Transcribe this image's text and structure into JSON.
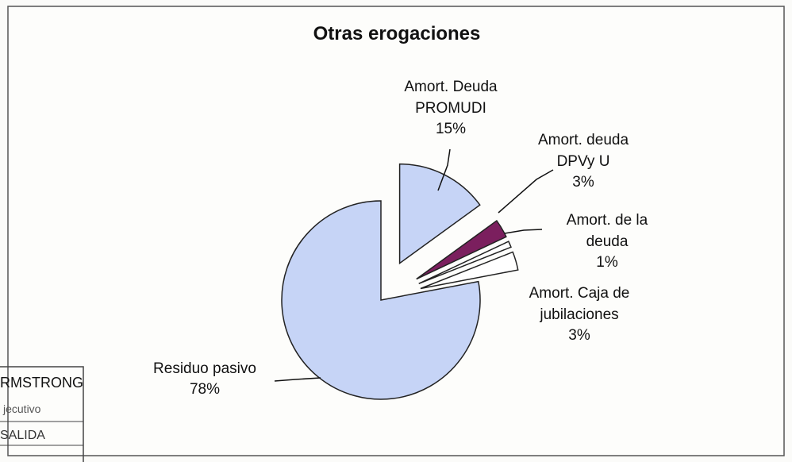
{
  "chart_data": {
    "type": "pie",
    "title": "Otras erogaciones",
    "categories": [
      "Amort. Deuda PROMUDI",
      "Amort. deuda DPVy U",
      "Amort. de la deuda",
      "Amort. Caja de jubilaciones",
      "Residuo pasivo"
    ],
    "values": [
      15,
      3,
      1,
      3,
      78
    ],
    "value_labels": [
      "15%",
      "3%",
      "1%",
      "3%",
      "78%"
    ],
    "colors": [
      "#c6d4f6",
      "#7b1f5e",
      "#ffffff",
      "#ffffff",
      "#c6d4f6"
    ]
  },
  "stamp_lines": [
    "RMSTRONG",
    "jecutivo",
    "SALIDA"
  ]
}
